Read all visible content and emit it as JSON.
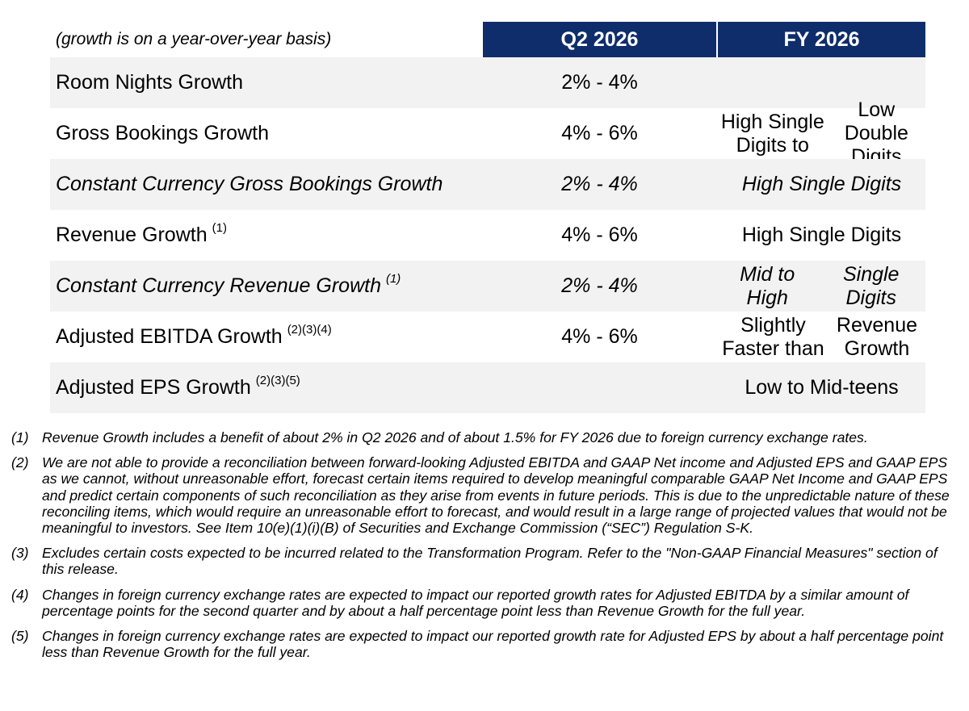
{
  "table": {
    "header_note": "(growth is on a year-over-year basis)",
    "columns": [
      "Q2 2026",
      "FY 2026"
    ],
    "rows": [
      {
        "label": "Room Nights Growth",
        "sup": "",
        "q2": "2% - 4%",
        "fy": [
          "",
          ""
        ]
      },
      {
        "label": "Gross Bookings Growth",
        "sup": "",
        "q2": "4% - 6%",
        "fy": [
          "High Single Digits to",
          "Low Double Digits"
        ]
      },
      {
        "label": "Constant Currency Gross Bookings Growth",
        "sup": "",
        "q2": "2% - 4%",
        "fy": [
          "High Single Digits",
          ""
        ]
      },
      {
        "label": "Revenue Growth",
        "sup": "(1)",
        "q2": "4% - 6%",
        "fy": [
          "High Single Digits",
          ""
        ]
      },
      {
        "label": "Constant Currency Revenue Growth",
        "sup": "(1)",
        "q2": "2% - 4%",
        "fy": [
          "Mid to High",
          "Single Digits"
        ]
      },
      {
        "label": "Adjusted EBITDA Growth",
        "sup": "(2)(3)(4)",
        "q2": "4% - 6%",
        "fy": [
          "Slightly Faster than",
          "Revenue Growth"
        ]
      },
      {
        "label": "Adjusted EPS Growth",
        "sup": "(2)(3)(5)",
        "q2": "",
        "fy": [
          "Low to Mid-teens",
          ""
        ]
      }
    ]
  },
  "footnotes": [
    {
      "num": "(1)",
      "text": "Revenue Growth includes a benefit of about 2% in Q2 2026 and of about 1.5% for FY 2026 due to foreign currency exchange rates."
    },
    {
      "num": "(2)",
      "text": "We are not able to provide a reconciliation between forward-looking Adjusted EBITDA and GAAP Net income and Adjusted EPS and GAAP EPS as we cannot, without unreasonable effort, forecast certain items required to develop meaningful comparable GAAP Net Income and GAAP EPS and predict certain components of such reconciliation as they arise from events in future periods. This is due to the unpredictable nature of these reconciling items, which would require an unreasonable effort to forecast, and would result in a large range of projected values that would not be meaningful to investors. See Item 10(e)(1)(i)(B) of Securities and Exchange Commission (“SEC”) Regulation S-K."
    },
    {
      "num": "(3)",
      "text": "Excludes certain costs expected to be incurred related to the Transformation Program. Refer to the \"Non-GAAP Financial Measures\" section of this release."
    },
    {
      "num": "(4)",
      "text": "Changes in foreign currency exchange rates are expected to impact our reported growth rates for Adjusted EBITDA by a similar amount of percentage points for the second quarter and by about a half percentage point less than Revenue Growth for the full year."
    },
    {
      "num": "(5)",
      "text": "Changes in foreign currency exchange rates are expected to impact our reported growth rate for Adjusted EPS by about a half percentage point less than Revenue Growth for the full year."
    }
  ],
  "colors": {
    "header_bg": "#0f2d6b",
    "row_shade": "#f2f2f2"
  }
}
